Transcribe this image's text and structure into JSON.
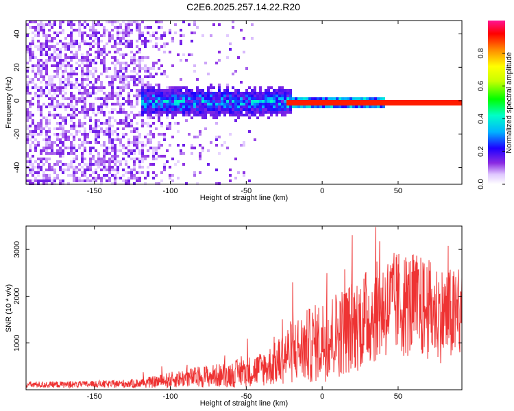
{
  "title": "C2E6.2025.257.14.22.R20",
  "chart_data": [
    {
      "type": "heatmap",
      "title": "C2E6.2025.257.14.22.R20",
      "xlabel": "Height of straight line (km)",
      "ylabel": "Frequency (Hz)",
      "xlim": [
        -195,
        92
      ],
      "ylim": [
        -50,
        48
      ],
      "xticks": [
        -150,
        -100,
        -50,
        0,
        50
      ],
      "yticks": [
        -40,
        -20,
        0,
        20,
        40
      ],
      "colorbar": {
        "label": "Normalized spectral amplitude",
        "range": [
          0.0,
          1.0
        ],
        "ticks": [
          0.0,
          0.2,
          0.4,
          0.6,
          0.8
        ]
      },
      "description_values": {
        "line_frequency_hz": 0,
        "coherent_from_km": -25,
        "noise_until_km": -100
      }
    },
    {
      "type": "line",
      "xlabel": "Height of straight line (km)",
      "ylabel": "SNR (10 * v/v)",
      "xlim": [
        -195,
        92
      ],
      "ylim": [
        0,
        3500
      ],
      "xticks": [
        -150,
        -100,
        -50,
        0,
        50
      ],
      "yticks": [
        1000,
        2000,
        3000
      ],
      "color": "#ee3333",
      "series": [
        {
          "name": "SNR",
          "x": [
            -195,
            -180,
            -160,
            -140,
            -120,
            -110,
            -100,
            -90,
            -80,
            -70,
            -60,
            -50,
            -40,
            -30,
            -25,
            -20,
            -15,
            -10,
            -5,
            0,
            10,
            20,
            30,
            40,
            50,
            60,
            70,
            80,
            92
          ],
          "mean": [
            110,
            110,
            115,
            120,
            140,
            170,
            210,
            250,
            280,
            300,
            330,
            380,
            450,
            560,
            720,
            820,
            880,
            920,
            980,
            1050,
            1200,
            1350,
            1550,
            1750,
            1850,
            1800,
            1700,
            1600,
            1550
          ],
          "amp": [
            70,
            70,
            70,
            80,
            100,
            130,
            170,
            200,
            230,
            250,
            280,
            320,
            380,
            480,
            600,
            700,
            750,
            800,
            850,
            900,
            950,
            1000,
            1050,
            1100,
            1150,
            1150,
            1100,
            1050,
            1000
          ]
        }
      ]
    }
  ]
}
